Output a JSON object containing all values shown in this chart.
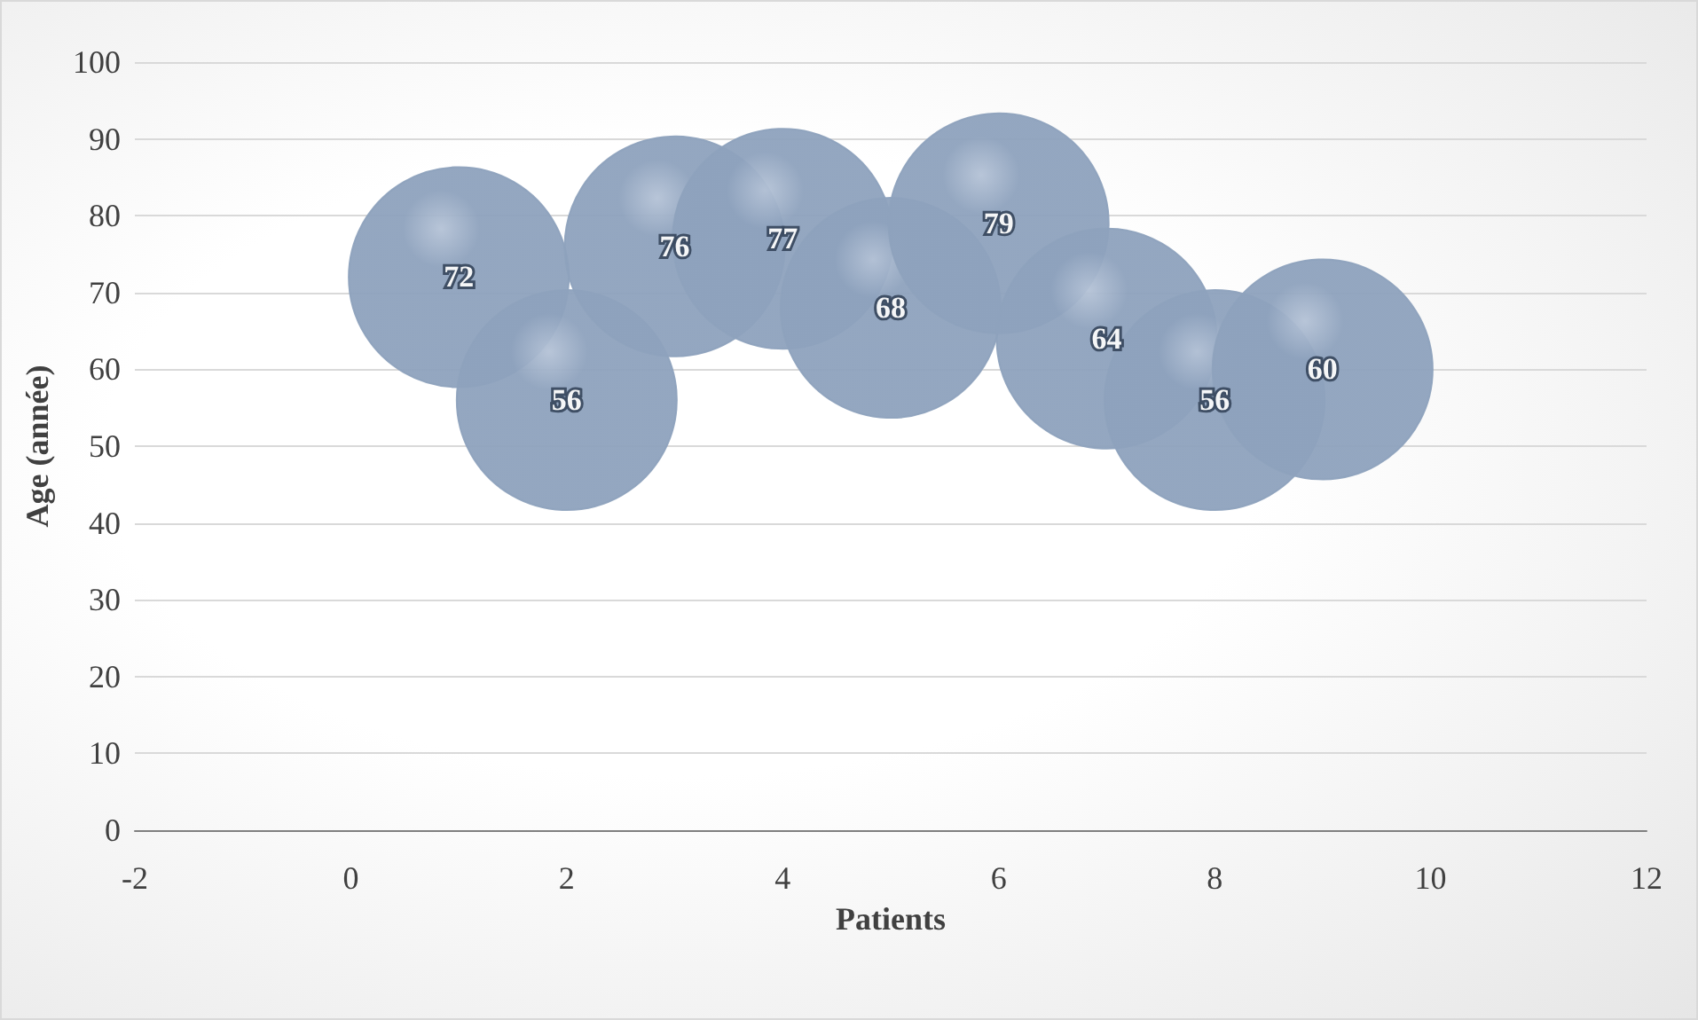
{
  "chart_data": {
    "type": "bubble",
    "xlabel": "Patients",
    "ylabel": "Age (année)",
    "x": [
      1,
      2,
      3,
      4,
      5,
      6,
      7,
      8,
      9
    ],
    "values": [
      72,
      56,
      76,
      77,
      68,
      79,
      64,
      56,
      60
    ],
    "sizes": [
      1,
      1,
      1,
      1,
      1,
      1,
      1,
      1,
      1
    ],
    "color": "#8ea2bd",
    "xlim": [
      -2,
      12
    ],
    "xticks": [
      -2,
      0,
      2,
      4,
      6,
      8,
      10,
      12
    ],
    "ylim": [
      0,
      100
    ],
    "yticks": [
      0,
      10,
      20,
      30,
      40,
      50,
      60,
      70,
      80,
      90,
      100
    ],
    "grid": "y",
    "data_labels": true
  }
}
